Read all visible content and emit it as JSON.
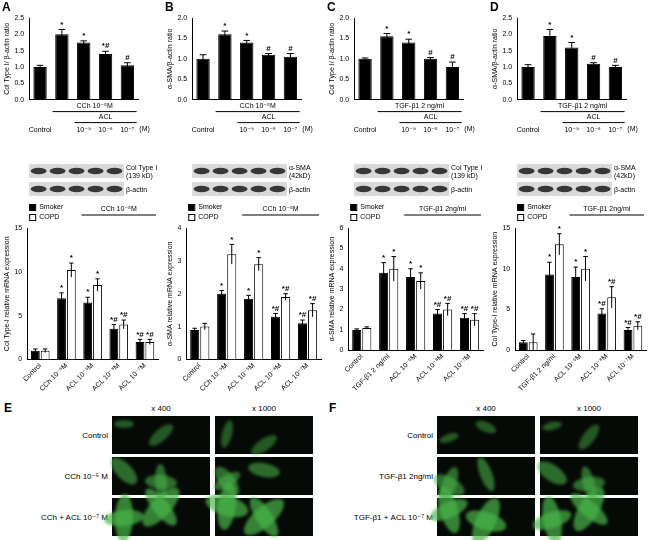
{
  "chart_data": [
    {
      "panel": "A",
      "type": "bar",
      "y_label": "Col Type I/ β-actin ratio",
      "categories": [
        "Control",
        null,
        "10⁻⁹",
        "10⁻⁸",
        "10⁻⁷"
      ],
      "unit_label": "(M)",
      "groups": [
        {
          "label": "CCh 10⁻⁵M",
          "from": 1,
          "to": 4
        },
        {
          "label": "ACL",
          "from": 2,
          "to": 4
        }
      ],
      "values": [
        1.0,
        2.0,
        1.75,
        1.4,
        1.05
      ],
      "errors": [
        0.05,
        0.15,
        0.05,
        0.08,
        0.08
      ],
      "significance": [
        "",
        "*",
        "*",
        "*#",
        "#"
      ],
      "color": "#000000",
      "ylim": [
        0,
        2.5
      ],
      "yticks": [
        {
          "value": 0,
          "label": "0.0"
        },
        {
          "value": 0.5,
          "label": "0.5"
        },
        {
          "value": 1,
          "label": "1.0"
        },
        {
          "value": 1.5,
          "label": "1.5"
        },
        {
          "value": 2,
          "label": "2.0"
        },
        {
          "value": 2.5,
          "label": "2.5"
        }
      ],
      "grid": false
    },
    {
      "panel": "B",
      "type": "bar",
      "y_label": "α-SMA/β-actin ratio",
      "categories": [
        "Control",
        null,
        "10⁻⁹",
        "10⁻⁸",
        "10⁻⁷"
      ],
      "unit_label": "(M)",
      "groups": [
        {
          "label": "CCh 10⁻⁵M",
          "from": 1,
          "to": 4
        },
        {
          "label": "ACL",
          "from": 2,
          "to": 4
        }
      ],
      "values": [
        1.0,
        1.6,
        1.4,
        1.1,
        1.05
      ],
      "errors": [
        0.1,
        0.08,
        0.05,
        0.03,
        0.08
      ],
      "significance": [
        "",
        "*",
        "*",
        "#",
        "#"
      ],
      "color": "#000000",
      "ylim": [
        0,
        2
      ],
      "yticks": [
        {
          "value": 0,
          "label": "0.0"
        },
        {
          "value": 0.5,
          "label": "0.5"
        },
        {
          "value": 1,
          "label": "1.0"
        },
        {
          "value": 1.5,
          "label": "1.5"
        },
        {
          "value": 2,
          "label": "2.0"
        }
      ],
      "grid": false
    },
    {
      "panel": "C",
      "type": "bar",
      "y_label": "Col Type I/ β-actin ratio",
      "categories": [
        "Control",
        null,
        "10⁻⁹",
        "10⁻⁸",
        "10⁻⁷"
      ],
      "unit_label": "(M)",
      "groups": [
        {
          "label": "TGF-β1 2 ng/ml",
          "from": 1,
          "to": 4
        },
        {
          "label": "ACL",
          "from": 2,
          "to": 4
        }
      ],
      "values": [
        1.0,
        1.55,
        1.4,
        1.0,
        0.8
      ],
      "errors": [
        0.02,
        0.07,
        0.08,
        0.03,
        0.12
      ],
      "significance": [
        "",
        "*",
        "*",
        "#",
        "#"
      ],
      "color": "#000000",
      "ylim": [
        0,
        2
      ],
      "yticks": [
        {
          "value": 0,
          "label": "0.0"
        },
        {
          "value": 0.5,
          "label": "0.5"
        },
        {
          "value": 1,
          "label": "1.0"
        },
        {
          "value": 1.5,
          "label": "1.5"
        },
        {
          "value": 2,
          "label": "2.0"
        }
      ],
      "grid": false
    },
    {
      "panel": "D",
      "type": "bar",
      "y_label": "α-SMA/β-actin ratio",
      "categories": [
        "Control",
        null,
        "10⁻⁹",
        "10⁻⁸",
        "10⁻⁷"
      ],
      "unit_label": "(M)",
      "groups": [
        {
          "label": "TGF-β1 2 ng/ml",
          "from": 1,
          "to": 4
        },
        {
          "label": "ACL",
          "from": 2,
          "to": 4
        }
      ],
      "values": [
        1.0,
        1.95,
        1.6,
        1.1,
        1.0
      ],
      "errors": [
        0.07,
        0.2,
        0.15,
        0.03,
        0.05
      ],
      "significance": [
        "",
        "*",
        "*",
        "#",
        "#"
      ],
      "color": "#000000",
      "ylim": [
        0,
        2.5
      ],
      "yticks": [
        {
          "value": 0,
          "label": "0.0"
        },
        {
          "value": 0.5,
          "label": "0.5"
        },
        {
          "value": 1,
          "label": "1.0"
        },
        {
          "value": 1.5,
          "label": "1.5"
        },
        {
          "value": 2,
          "label": "2.0"
        },
        {
          "value": 2.5,
          "label": "2.5"
        }
      ],
      "grid": false
    },
    {
      "type": "bar",
      "y_label": "Col Type-I relative mRNA expression",
      "categories": [
        "Control",
        "CCh 10⁻⁵M",
        "ACL 10⁻⁹M",
        "ACL 10⁻⁸M",
        "ACL 10⁻⁷M"
      ],
      "groups": [
        {
          "label": "CCh 10⁻⁵M",
          "from": 2,
          "to": 4
        }
      ],
      "series": [
        {
          "name": "Smoker",
          "color": "#000000",
          "values": [
            1,
            7,
            6.5,
            3.5,
            2
          ],
          "errors": [
            0.2,
            0.6,
            0.6,
            0.5,
            0.3
          ],
          "significance": [
            "",
            "*",
            "*",
            "*#",
            "*#"
          ]
        },
        {
          "name": "COPD",
          "color": "#ffffff",
          "values": [
            1,
            10.2,
            8.5,
            4,
            2
          ],
          "errors": [
            0.2,
            0.8,
            0.7,
            0.5,
            0.3
          ],
          "significance": [
            "",
            "*",
            "*",
            "*#",
            "*#"
          ]
        }
      ],
      "ylim": [
        0,
        15
      ],
      "yticks": [
        0,
        5,
        10,
        15
      ],
      "legend": "top-left",
      "grid": false
    },
    {
      "type": "bar",
      "y_label": "α-SMA relative mRNA expression",
      "categories": [
        "Control",
        "CCh 10⁻⁵M",
        "ACL 10⁻⁹M",
        "ACL 10⁻⁸M",
        "ACL 10⁻⁷M"
      ],
      "groups": [
        {
          "label": "CCh 10⁻⁵M",
          "from": 2,
          "to": 4
        }
      ],
      "series": [
        {
          "name": "Smoker",
          "color": "#000000",
          "values": [
            0.9,
            2.0,
            1.85,
            1.3,
            1.1
          ],
          "errors": [
            0.05,
            0.1,
            0.1,
            0.1,
            0.1
          ],
          "significance": [
            "",
            "*",
            "*",
            "*#",
            "*#"
          ]
        },
        {
          "name": "COPD",
          "color": "#ffffff",
          "values": [
            1.0,
            3.2,
            2.9,
            1.9,
            1.5
          ],
          "errors": [
            0.1,
            0.3,
            0.2,
            0.1,
            0.2
          ],
          "significance": [
            "",
            "*",
            "*",
            "*#",
            "*#"
          ]
        }
      ],
      "ylim": [
        0,
        4
      ],
      "yticks": [
        0,
        1,
        2,
        3,
        4
      ],
      "legend": "top-left",
      "grid": false
    },
    {
      "type": "bar",
      "y_label": "α-SMA relative mRNA expression",
      "categories": [
        "Control",
        "TGF-β1 2 ng/ml",
        "ACL 10⁻⁹M",
        "ACL 10⁻⁸M",
        "ACL 10⁻⁷M"
      ],
      "groups": [
        {
          "label": "TGF-β1 2ng/ml",
          "from": 2,
          "to": 4
        }
      ],
      "series": [
        {
          "name": "Smoker",
          "color": "#000000",
          "values": [
            1.0,
            3.8,
            3.6,
            1.8,
            1.6
          ],
          "errors": [
            0.05,
            0.5,
            0.4,
            0.2,
            0.2
          ],
          "significance": [
            "",
            "*",
            "*",
            "*#",
            "*#"
          ]
        },
        {
          "name": "COPD",
          "color": "#ffffff",
          "values": [
            1.1,
            4.0,
            3.4,
            2.0,
            1.5
          ],
          "errors": [
            0.05,
            0.6,
            0.4,
            0.3,
            0.3
          ],
          "significance": [
            "",
            "*",
            "*",
            "*#",
            "*#"
          ]
        }
      ],
      "ylim": [
        0,
        6
      ],
      "yticks": [
        0,
        1,
        2,
        3,
        4,
        5,
        6
      ],
      "legend": "top-left",
      "grid": false
    },
    {
      "type": "bar",
      "y_label": "Col Type-I relative mRNA expression",
      "categories": [
        "Control",
        "TGF-β1 2 ng/ml",
        "ACL 10⁻⁹M",
        "ACL 10⁻⁸M",
        "ACL 10⁻⁷M"
      ],
      "groups": [
        {
          "label": "TGF-β1 2ng/ml",
          "from": 2,
          "to": 4
        }
      ],
      "series": [
        {
          "name": "Smoker",
          "color": "#000000",
          "values": [
            1,
            9.3,
            9.0,
            4.5,
            2.5
          ],
          "errors": [
            0.2,
            1.5,
            1.2,
            0.6,
            0.3
          ],
          "significance": [
            "",
            "*",
            "*",
            "*#",
            "*#"
          ]
        },
        {
          "name": "COPD",
          "color": "#ffffff",
          "values": [
            1,
            13,
            10,
            6.5,
            3
          ],
          "errors": [
            1,
            1.3,
            1.5,
            1.3,
            0.5
          ],
          "significance": [
            "",
            "*",
            "*",
            "*#",
            "*#"
          ]
        }
      ],
      "ylim": [
        0,
        15
      ],
      "yticks": [
        0,
        5,
        10,
        15
      ],
      "legend": "top-left",
      "grid": false
    }
  ],
  "blots": [
    {
      "panel": "A",
      "bands": [
        [
          "Col Type I",
          "(139 kD)"
        ],
        [
          "β-actin"
        ]
      ]
    },
    {
      "panel": "B",
      "bands": [
        [
          "α-SMA",
          "(42kD)"
        ],
        [
          "β-actin"
        ]
      ]
    },
    {
      "panel": "C",
      "bands": [
        [
          "Col Type I",
          "(139 kD)"
        ],
        [
          "β-actin"
        ]
      ]
    },
    {
      "panel": "D",
      "bands": [
        [
          "α-SMA",
          "(42kD)"
        ],
        [
          "β-actin"
        ]
      ]
    }
  ],
  "micrographs": [
    {
      "panel": "E",
      "columns": [
        "x 400",
        "x 1000"
      ],
      "rows": [
        "Control",
        "CCh 10⁻⁵ M",
        "CCh + ACL 10⁻⁷ M"
      ]
    },
    {
      "panel": "F",
      "columns": [
        "x 400",
        "x 1000"
      ],
      "rows": [
        "Control",
        "TGF-β1 2ng/ml",
        "TGF-β1 + ACL 10⁻⁷ M"
      ]
    }
  ]
}
